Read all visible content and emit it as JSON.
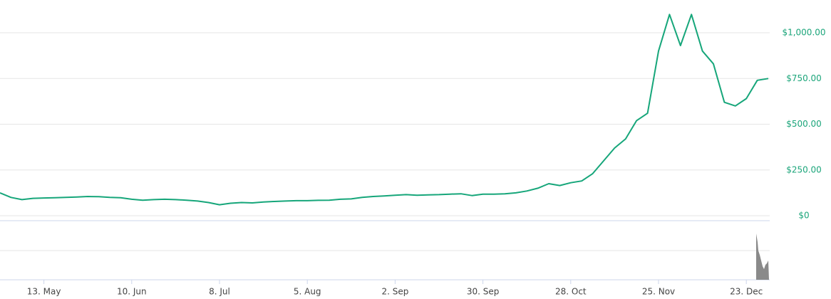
{
  "chart_data": {
    "type": "line",
    "categories": [
      null,
      null,
      null,
      null,
      "13. May",
      null,
      null,
      null,
      null,
      null,
      null,
      null,
      "10. Jun",
      null,
      null,
      null,
      null,
      null,
      null,
      null,
      "8. Jul",
      null,
      null,
      null,
      null,
      null,
      null,
      null,
      "5. Aug",
      null,
      null,
      null,
      null,
      null,
      null,
      null,
      "2. Sep",
      null,
      null,
      null,
      null,
      null,
      null,
      null,
      "30. Sep",
      null,
      null,
      null,
      null,
      null,
      null,
      null,
      "28. Oct",
      null,
      null,
      null,
      null,
      null,
      null,
      null,
      "25. Nov",
      null,
      null,
      null,
      null,
      null,
      null,
      null,
      "23. Dec",
      null,
      null
    ],
    "values": [
      125,
      100,
      88,
      95,
      97,
      98,
      100,
      102,
      105,
      104,
      100,
      98,
      90,
      85,
      88,
      90,
      88,
      85,
      80,
      72,
      60,
      68,
      72,
      70,
      75,
      78,
      80,
      82,
      82,
      84,
      85,
      90,
      92,
      100,
      105,
      108,
      112,
      115,
      112,
      114,
      115,
      118,
      120,
      110,
      118,
      118,
      120,
      125,
      135,
      150,
      175,
      165,
      180,
      190,
      230,
      300,
      370,
      420,
      520,
      560,
      900,
      1100,
      930,
      1100,
      900,
      830,
      620,
      600,
      640,
      740,
      750
    ],
    "color": "#16a67a",
    "ylim": [
      0,
      1150
    ],
    "yticks": [
      {
        "value": 0,
        "label": "$0"
      },
      {
        "value": 250,
        "label": "$250.00"
      },
      {
        "value": 500,
        "label": "$500.00"
      },
      {
        "value": 750,
        "label": "$750.00"
      },
      {
        "value": 1000,
        "label": "$1,000.00"
      }
    ],
    "grid": true
  }
}
